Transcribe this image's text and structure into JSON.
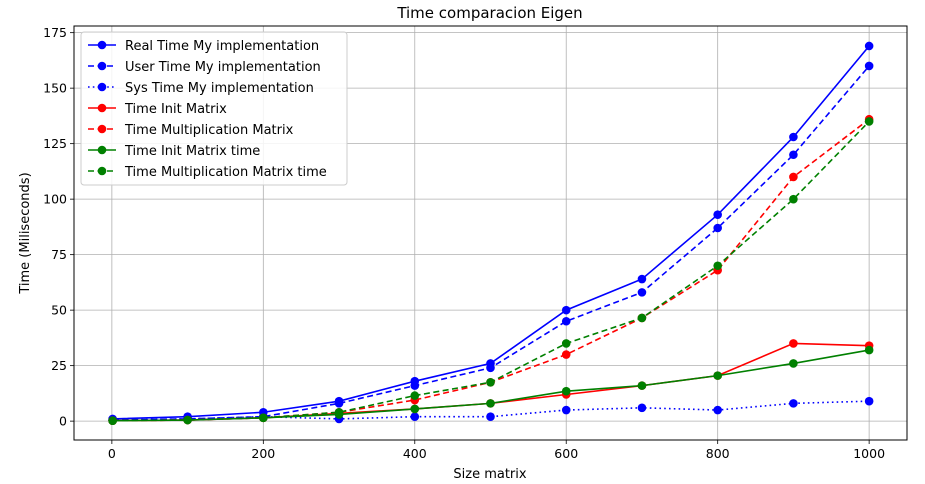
{
  "chart_data": {
    "type": "line",
    "title": "Time comparacion Eigen",
    "xlabel": "Size matrix",
    "ylabel": "Time (Miliseconds)",
    "xlim": [
      -50,
      1050
    ],
    "ylim": [
      -8.5,
      178
    ],
    "xticks": [
      0,
      200,
      400,
      600,
      800,
      1000
    ],
    "yticks": [
      0,
      25,
      50,
      75,
      100,
      125,
      150,
      175
    ],
    "grid": true,
    "legend_position": "top-left",
    "x": [
      1,
      100,
      200,
      300,
      400,
      500,
      600,
      700,
      800,
      900,
      1000
    ],
    "series": [
      {
        "name": "Real Time My implementation",
        "color": "#0000ff",
        "style": "solid",
        "values": [
          1,
          2,
          4,
          9,
          18,
          26,
          50,
          64,
          93,
          128,
          169
        ]
      },
      {
        "name": "User Time My implementation",
        "color": "#0000ff",
        "style": "dashed",
        "values": [
          0.5,
          1,
          2,
          8,
          16,
          24,
          45,
          58,
          87,
          120,
          160
        ]
      },
      {
        "name": "Sys Time My implementation",
        "color": "#0000ff",
        "style": "dotted",
        "values": [
          0.5,
          1,
          2,
          1,
          2,
          2,
          5,
          6,
          5,
          8,
          9
        ]
      },
      {
        "name": "Time Init Matrix",
        "color": "#ff0000",
        "style": "solid",
        "values": [
          0.2,
          0.5,
          1.5,
          3.5,
          5.5,
          8,
          12,
          16,
          20.5,
          35,
          34
        ]
      },
      {
        "name": "Time Multiplication Matrix",
        "color": "#ff0000",
        "style": "dashed",
        "values": [
          0.2,
          0.5,
          1.5,
          4,
          9.5,
          17.5,
          30,
          46.5,
          68,
          110,
          136
        ]
      },
      {
        "name": "Time Init Matrix time",
        "color": "#008000",
        "style": "solid",
        "values": [
          0.2,
          0.5,
          1.5,
          3,
          5.5,
          8,
          13.5,
          16,
          20.5,
          26,
          32
        ]
      },
      {
        "name": "Time Multiplication Matrix time",
        "color": "#008000",
        "style": "dashed",
        "values": [
          0.2,
          0.5,
          1.5,
          4,
          11.5,
          17.5,
          35,
          46.5,
          70,
          100,
          135
        ]
      }
    ]
  }
}
